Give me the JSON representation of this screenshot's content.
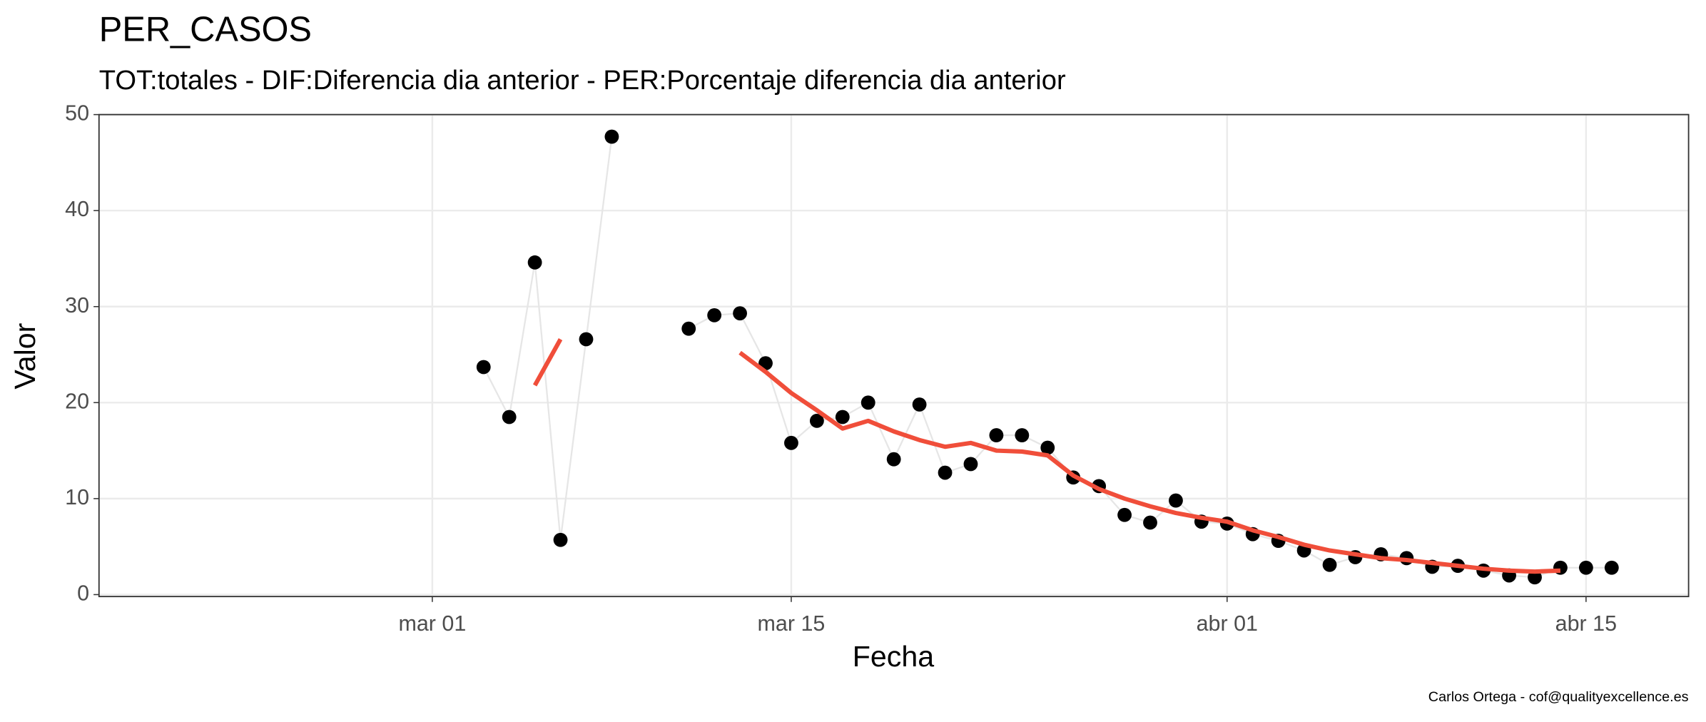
{
  "chart_data": {
    "type": "line",
    "title": "PER_CASOS",
    "subtitle": "TOT:totales - DIF:Diferencia dia anterior - PER:Porcentaje diferencia dia anterior",
    "x_label": "Fecha",
    "y_label": "Valor",
    "caption": "Carlos Ortega - cof@qualityexcellence.es",
    "x": [
      "03-03",
      "03-04",
      "03-05",
      "03-06",
      "03-07",
      "03-08",
      "03-09",
      "03-10",
      "03-11",
      "03-12",
      "03-13",
      "03-14",
      "03-15",
      "03-16",
      "03-17",
      "03-18",
      "03-19",
      "03-20",
      "03-21",
      "03-22",
      "03-23",
      "03-24",
      "03-25",
      "03-26",
      "03-27",
      "03-28",
      "03-29",
      "03-30",
      "03-31",
      "04-01",
      "04-02",
      "04-03",
      "04-04",
      "04-05",
      "04-06",
      "04-07",
      "04-08",
      "04-09",
      "04-10",
      "04-11",
      "04-12",
      "04-13",
      "04-14",
      "04-15",
      "04-16"
    ],
    "series": [
      {
        "style": "points",
        "color": "#000000",
        "line_color": "#e6e6e6",
        "values": [
          23.7,
          18.5,
          34.6,
          5.7,
          26.6,
          47.7,
          null,
          null,
          27.7,
          29.1,
          29.3,
          24.1,
          15.8,
          18.1,
          18.5,
          20.0,
          14.1,
          19.8,
          12.7,
          13.6,
          16.6,
          16.6,
          15.3,
          12.2,
          11.3,
          8.3,
          7.5,
          9.8,
          7.6,
          7.4,
          6.3,
          5.6,
          4.6,
          3.1,
          3.9,
          4.2,
          3.8,
          2.9,
          3.0,
          2.5,
          2.0,
          1.8,
          2.8,
          2.8,
          2.8
        ]
      },
      {
        "style": "line",
        "color": "#f04e3a",
        "values": [
          null,
          null,
          21.8,
          26.6,
          null,
          null,
          null,
          null,
          null,
          null,
          25.2,
          23.2,
          21.0,
          19.2,
          17.3,
          18.1,
          17.0,
          16.1,
          15.4,
          15.8,
          15.0,
          14.9,
          14.5,
          12.4,
          11.0,
          10.0,
          9.2,
          8.5,
          8.0,
          7.6,
          6.7,
          6.0,
          5.2,
          4.6,
          4.2,
          3.8,
          3.6,
          3.3,
          3.0,
          2.7,
          2.5,
          2.4,
          2.5,
          null,
          null
        ]
      }
    ],
    "xlim": [
      "02-16",
      "04-19"
    ],
    "xticks": [
      {
        "value": "03-01",
        "label": "mar 01"
      },
      {
        "value": "03-15",
        "label": "mar 15"
      },
      {
        "value": "04-01",
        "label": "abr 01"
      },
      {
        "value": "04-15",
        "label": "abr 15"
      }
    ],
    "ylim": [
      -0.2,
      50
    ],
    "yticks": [
      0,
      10,
      20,
      30,
      40,
      50
    ],
    "grid": true
  }
}
